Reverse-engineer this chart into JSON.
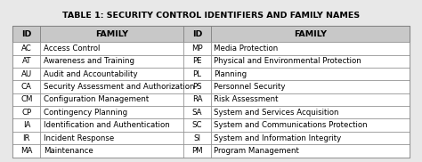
{
  "title": "TABLE 1: SECURITY CONTROL IDENTIFIERS AND FAMILY NAMES",
  "headers": [
    "ID",
    "FAMILY",
    "ID",
    "FAMILY"
  ],
  "left_data": [
    [
      "AC",
      "Access Control"
    ],
    [
      "AT",
      "Awareness and Training"
    ],
    [
      "AU",
      "Audit and Accountability"
    ],
    [
      "CA",
      "Security Assessment and Authorization"
    ],
    [
      "CM",
      "Configuration Management"
    ],
    [
      "CP",
      "Contingency Planning"
    ],
    [
      "IA",
      "Identification and Authentication"
    ],
    [
      "IR",
      "Incident Response"
    ],
    [
      "MA",
      "Maintenance"
    ]
  ],
  "right_data": [
    [
      "MP",
      "Media Protection"
    ],
    [
      "PE",
      "Physical and Environmental Protection"
    ],
    [
      "PL",
      "Planning"
    ],
    [
      "PS",
      "Personnel Security"
    ],
    [
      "RA",
      "Risk Assessment"
    ],
    [
      "SA",
      "System and Services Acquisition"
    ],
    [
      "SC",
      "System and Communications Protection"
    ],
    [
      "SI",
      "System and Information Integrity"
    ],
    [
      "PM",
      "Program Management"
    ]
  ],
  "header_bg": "#c8c8c8",
  "row_bg": "#ffffff",
  "border_color": "#7a7a7a",
  "text_color": "#000000",
  "title_fontsize": 6.8,
  "header_fontsize": 6.8,
  "cell_fontsize": 6.2,
  "fig_bg": "#e8e8e8"
}
